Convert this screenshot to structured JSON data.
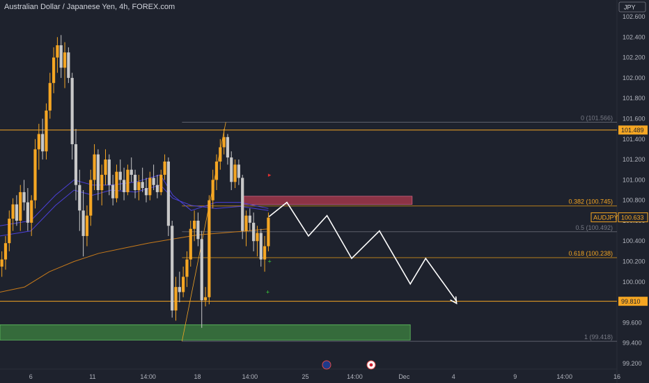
{
  "header": {
    "title": "Australian Dollar / Japanese Yen, 4h, FOREX.com",
    "currency_label": "JPY"
  },
  "colors": {
    "background": "#1e222d",
    "up_candle": "#f5a623",
    "down_candle": "#c8c8c8",
    "level_line": "#f5a623",
    "fib_text_gray": "#787b86",
    "ma_blue": "#4b40d8",
    "ma_orange": "#c77a1a",
    "supply_zone": "#b03a4e",
    "demand_zone": "#3f8a42",
    "projection": "#ffffff"
  },
  "chart_data": {
    "type": "candlestick",
    "y_axis": {
      "range": [
        99.15,
        102.72
      ],
      "ticks": [
        "99.200",
        "99.400",
        "99.600",
        "99.800",
        "100.000",
        "100.200",
        "100.400",
        "100.600",
        "100.800",
        "101.000",
        "101.200",
        "101.400",
        "101.600",
        "101.800",
        "102.000",
        "102.200",
        "102.400",
        "102.600"
      ]
    },
    "x_axis": {
      "range": [
        0,
        100
      ],
      "ticks": [
        {
          "label": "6",
          "x": 5
        },
        {
          "label": "11",
          "x": 15
        },
        {
          "label": "14:00",
          "x": 24
        },
        {
          "label": "18",
          "x": 32
        },
        {
          "label": "14:00",
          "x": 40.5
        },
        {
          "label": "25",
          "x": 49.5
        },
        {
          "label": "14:00",
          "x": 57.5
        },
        {
          "label": "Dec",
          "x": 65.5
        },
        {
          "label": "4",
          "x": 73.5
        },
        {
          "label": "9",
          "x": 83.5
        },
        {
          "label": "14:00",
          "x": 91.5
        },
        {
          "label": "16",
          "x": 100
        }
      ]
    },
    "candles": [
      {
        "x": 0.3,
        "o": 100.15,
        "h": 100.3,
        "l": 100.05,
        "c": 100.22
      },
      {
        "x": 0.9,
        "o": 100.22,
        "h": 100.45,
        "l": 100.12,
        "c": 100.38
      },
      {
        "x": 1.5,
        "o": 100.38,
        "h": 100.7,
        "l": 100.3,
        "c": 100.62
      },
      {
        "x": 2.1,
        "o": 100.62,
        "h": 100.82,
        "l": 100.5,
        "c": 100.76
      },
      {
        "x": 2.7,
        "o": 100.76,
        "h": 100.85,
        "l": 100.55,
        "c": 100.6
      },
      {
        "x": 3.3,
        "o": 100.6,
        "h": 100.95,
        "l": 100.5,
        "c": 100.88
      },
      {
        "x": 3.9,
        "o": 100.88,
        "h": 101.0,
        "l": 100.7,
        "c": 100.78
      },
      {
        "x": 4.5,
        "o": 100.78,
        "h": 100.92,
        "l": 100.5,
        "c": 100.58
      },
      {
        "x": 5.1,
        "o": 100.58,
        "h": 100.85,
        "l": 100.45,
        "c": 100.8
      },
      {
        "x": 5.7,
        "o": 100.8,
        "h": 101.4,
        "l": 100.72,
        "c": 101.3
      },
      {
        "x": 6.3,
        "o": 101.3,
        "h": 101.55,
        "l": 101.1,
        "c": 101.45
      },
      {
        "x": 6.9,
        "o": 101.45,
        "h": 101.6,
        "l": 101.2,
        "c": 101.28
      },
      {
        "x": 7.5,
        "o": 101.28,
        "h": 101.75,
        "l": 101.2,
        "c": 101.68
      },
      {
        "x": 8.1,
        "o": 101.68,
        "h": 102.05,
        "l": 101.6,
        "c": 101.95
      },
      {
        "x": 8.7,
        "o": 101.95,
        "h": 102.3,
        "l": 101.85,
        "c": 102.2
      },
      {
        "x": 9.3,
        "o": 102.2,
        "h": 102.4,
        "l": 102.05,
        "c": 102.32
      },
      {
        "x": 9.9,
        "o": 102.32,
        "h": 102.42,
        "l": 102.0,
        "c": 102.1
      },
      {
        "x": 10.5,
        "o": 102.1,
        "h": 102.35,
        "l": 101.9,
        "c": 102.25
      },
      {
        "x": 11.1,
        "o": 102.25,
        "h": 102.3,
        "l": 101.95,
        "c": 102.0
      },
      {
        "x": 11.7,
        "o": 102.0,
        "h": 102.05,
        "l": 101.2,
        "c": 101.35
      },
      {
        "x": 12.3,
        "o": 101.35,
        "h": 101.5,
        "l": 100.8,
        "c": 100.95
      },
      {
        "x": 12.9,
        "o": 100.95,
        "h": 101.1,
        "l": 100.5,
        "c": 100.7
      },
      {
        "x": 13.5,
        "o": 100.7,
        "h": 100.9,
        "l": 100.25,
        "c": 100.45
      },
      {
        "x": 14.1,
        "o": 100.45,
        "h": 100.75,
        "l": 100.35,
        "c": 100.65
      },
      {
        "x": 14.7,
        "o": 100.65,
        "h": 101.1,
        "l": 100.55,
        "c": 101.0
      },
      {
        "x": 15.3,
        "o": 101.0,
        "h": 101.35,
        "l": 100.9,
        "c": 101.25
      },
      {
        "x": 15.9,
        "o": 101.25,
        "h": 101.3,
        "l": 100.8,
        "c": 100.9
      },
      {
        "x": 16.5,
        "o": 100.9,
        "h": 101.15,
        "l": 100.75,
        "c": 101.05
      },
      {
        "x": 17.1,
        "o": 101.05,
        "h": 101.3,
        "l": 100.95,
        "c": 101.2
      },
      {
        "x": 17.7,
        "o": 101.2,
        "h": 101.25,
        "l": 100.85,
        "c": 100.95
      },
      {
        "x": 18.3,
        "o": 100.95,
        "h": 101.05,
        "l": 100.75,
        "c": 100.82
      },
      {
        "x": 18.9,
        "o": 100.82,
        "h": 101.15,
        "l": 100.78,
        "c": 101.08
      },
      {
        "x": 19.5,
        "o": 101.08,
        "h": 101.2,
        "l": 100.9,
        "c": 101.0
      },
      {
        "x": 20.1,
        "o": 101.0,
        "h": 101.12,
        "l": 100.8,
        "c": 100.88
      },
      {
        "x": 20.7,
        "o": 100.88,
        "h": 101.15,
        "l": 100.85,
        "c": 101.1
      },
      {
        "x": 21.3,
        "o": 101.1,
        "h": 101.22,
        "l": 100.98,
        "c": 101.05
      },
      {
        "x": 21.9,
        "o": 101.05,
        "h": 101.1,
        "l": 100.82,
        "c": 100.9
      },
      {
        "x": 22.5,
        "o": 100.9,
        "h": 101.05,
        "l": 100.8,
        "c": 100.98
      },
      {
        "x": 23.1,
        "o": 100.98,
        "h": 101.12,
        "l": 100.88,
        "c": 100.92
      },
      {
        "x": 23.7,
        "o": 100.92,
        "h": 101.02,
        "l": 100.78,
        "c": 100.85
      },
      {
        "x": 24.3,
        "o": 100.85,
        "h": 101.08,
        "l": 100.8,
        "c": 101.02
      },
      {
        "x": 24.9,
        "o": 101.02,
        "h": 101.15,
        "l": 100.9,
        "c": 100.95
      },
      {
        "x": 25.5,
        "o": 100.95,
        "h": 101.05,
        "l": 100.82,
        "c": 100.88
      },
      {
        "x": 26.1,
        "o": 100.88,
        "h": 101.1,
        "l": 100.85,
        "c": 101.05
      },
      {
        "x": 26.7,
        "o": 101.05,
        "h": 101.25,
        "l": 101.0,
        "c": 101.18
      },
      {
        "x": 27.3,
        "o": 101.18,
        "h": 101.22,
        "l": 100.45,
        "c": 100.55
      },
      {
        "x": 27.9,
        "o": 100.55,
        "h": 100.6,
        "l": 99.65,
        "c": 99.72
      },
      {
        "x": 28.5,
        "o": 99.72,
        "h": 100.05,
        "l": 99.62,
        "c": 99.95
      },
      {
        "x": 29.1,
        "o": 99.95,
        "h": 100.1,
        "l": 99.8,
        "c": 99.9
      },
      {
        "x": 29.7,
        "o": 99.9,
        "h": 100.15,
        "l": 99.85,
        "c": 100.05
      },
      {
        "x": 30.3,
        "o": 100.05,
        "h": 100.3,
        "l": 99.95,
        "c": 100.22
      },
      {
        "x": 30.9,
        "o": 100.22,
        "h": 100.6,
        "l": 100.15,
        "c": 100.52
      },
      {
        "x": 31.5,
        "o": 100.52,
        "h": 100.7,
        "l": 100.4,
        "c": 100.6
      },
      {
        "x": 32.1,
        "o": 100.6,
        "h": 100.68,
        "l": 100.35,
        "c": 100.42
      },
      {
        "x": 32.7,
        "o": 100.42,
        "h": 100.5,
        "l": 99.55,
        "c": 99.82
      },
      {
        "x": 33.3,
        "o": 99.82,
        "h": 99.95,
        "l": 99.76,
        "c": 99.85
      },
      {
        "x": 33.9,
        "o": 99.85,
        "h": 100.85,
        "l": 99.78,
        "c": 100.8
      },
      {
        "x": 34.5,
        "o": 100.8,
        "h": 101.1,
        "l": 100.72,
        "c": 101.0
      },
      {
        "x": 35.1,
        "o": 101.0,
        "h": 101.25,
        "l": 100.9,
        "c": 101.18
      },
      {
        "x": 35.7,
        "o": 101.18,
        "h": 101.4,
        "l": 101.1,
        "c": 101.32
      },
      {
        "x": 36.3,
        "o": 101.32,
        "h": 101.5,
        "l": 101.25,
        "c": 101.42
      },
      {
        "x": 36.9,
        "o": 101.42,
        "h": 101.45,
        "l": 101.15,
        "c": 101.22
      },
      {
        "x": 37.5,
        "o": 101.22,
        "h": 101.28,
        "l": 100.9,
        "c": 100.98
      },
      {
        "x": 38.1,
        "o": 100.98,
        "h": 101.2,
        "l": 100.92,
        "c": 101.15
      },
      {
        "x": 38.7,
        "o": 101.15,
        "h": 101.2,
        "l": 100.95,
        "c": 101.02
      },
      {
        "x": 39.3,
        "o": 101.02,
        "h": 101.05,
        "l": 100.42,
        "c": 100.5
      },
      {
        "x": 39.9,
        "o": 100.5,
        "h": 100.7,
        "l": 100.35,
        "c": 100.65
      },
      {
        "x": 40.5,
        "o": 100.65,
        "h": 100.72,
        "l": 100.5,
        "c": 100.58
      },
      {
        "x": 41.1,
        "o": 100.58,
        "h": 100.68,
        "l": 100.3,
        "c": 100.4
      },
      {
        "x": 41.7,
        "o": 100.4,
        "h": 100.55,
        "l": 100.25,
        "c": 100.48
      },
      {
        "x": 42.3,
        "o": 100.48,
        "h": 100.52,
        "l": 100.15,
        "c": 100.22
      },
      {
        "x": 42.9,
        "o": 100.22,
        "h": 100.45,
        "l": 100.1,
        "c": 100.35
      },
      {
        "x": 43.5,
        "o": 100.35,
        "h": 100.68,
        "l": 100.3,
        "c": 100.63
      }
    ],
    "moving_averages": [
      {
        "color": "blue",
        "points": [
          [
            0,
            100.45
          ],
          [
            5,
            100.5
          ],
          [
            9,
            100.75
          ],
          [
            12,
            100.9
          ],
          [
            15,
            100.85
          ],
          [
            18,
            100.9
          ],
          [
            22,
            100.88
          ],
          [
            26,
            100.95
          ],
          [
            28,
            100.82
          ],
          [
            31,
            100.75
          ],
          [
            35,
            100.72
          ],
          [
            39,
            100.74
          ],
          [
            43.5,
            100.7
          ]
        ]
      },
      {
        "color": "blue",
        "points": [
          [
            0,
            100.55
          ],
          [
            5,
            100.6
          ],
          [
            9,
            100.85
          ],
          [
            12,
            101.0
          ],
          [
            15,
            100.95
          ],
          [
            18,
            100.95
          ],
          [
            22,
            100.98
          ],
          [
            26,
            101.05
          ],
          [
            28,
            100.85
          ],
          [
            31,
            100.7
          ],
          [
            35,
            100.78
          ],
          [
            39,
            100.78
          ],
          [
            43.5,
            100.72
          ]
        ]
      },
      {
        "color": "orange",
        "points": [
          [
            0,
            99.9
          ],
          [
            4,
            99.95
          ],
          [
            8,
            100.1
          ],
          [
            12,
            100.2
          ],
          [
            16,
            100.28
          ],
          [
            20,
            100.33
          ],
          [
            24,
            100.38
          ],
          [
            28,
            100.42
          ],
          [
            32,
            100.46
          ],
          [
            36,
            100.48
          ],
          [
            40,
            100.5
          ],
          [
            43.5,
            100.52
          ]
        ]
      }
    ],
    "levels": [
      {
        "price": 101.489,
        "label": "101.489",
        "style": "orange"
      },
      {
        "price": 99.81,
        "label": "99.810",
        "style": "orange"
      },
      {
        "price": 100.633,
        "label": "100.633",
        "style": "price",
        "name": "AUDJPY"
      }
    ],
    "fib": [
      {
        "ratio": "0",
        "price": 101.566,
        "text": "0 (101.566)",
        "color": "gray"
      },
      {
        "ratio": "0.382",
        "price": 100.745,
        "text": "0.382 (100.745)",
        "color": "orange"
      },
      {
        "ratio": "0.5",
        "price": 100.492,
        "text": "0.5 (100.492)",
        "color": "gray"
      },
      {
        "ratio": "0.618",
        "price": 100.238,
        "text": "0.618 (100.238)",
        "color": "orange"
      },
      {
        "ratio": "1",
        "price": 99.418,
        "text": "1 (99.418)",
        "color": "gray"
      }
    ],
    "zones": [
      {
        "type": "supply",
        "x0": 39.5,
        "x1": 66.8,
        "y0": 100.76,
        "y1": 100.84
      },
      {
        "type": "demand",
        "x0": 0,
        "x1": 66.5,
        "y0": 99.43,
        "y1": 99.58
      }
    ],
    "projection": [
      [
        43.6,
        100.64
      ],
      [
        46.5,
        100.78
      ],
      [
        50,
        100.45
      ],
      [
        53,
        100.65
      ],
      [
        57,
        100.23
      ],
      [
        61.5,
        100.5
      ],
      [
        66.5,
        99.98
      ],
      [
        69,
        100.23
      ],
      [
        74,
        99.81
      ]
    ],
    "markers": [
      {
        "x": 43.7,
        "y": 100.2,
        "color": "green",
        "symbol": "+"
      },
      {
        "x": 43.4,
        "y": 99.9,
        "color": "green",
        "symbol": "+"
      },
      {
        "x": 43.7,
        "y": 101.05,
        "color": "red",
        "symbol": "▸"
      }
    ]
  }
}
